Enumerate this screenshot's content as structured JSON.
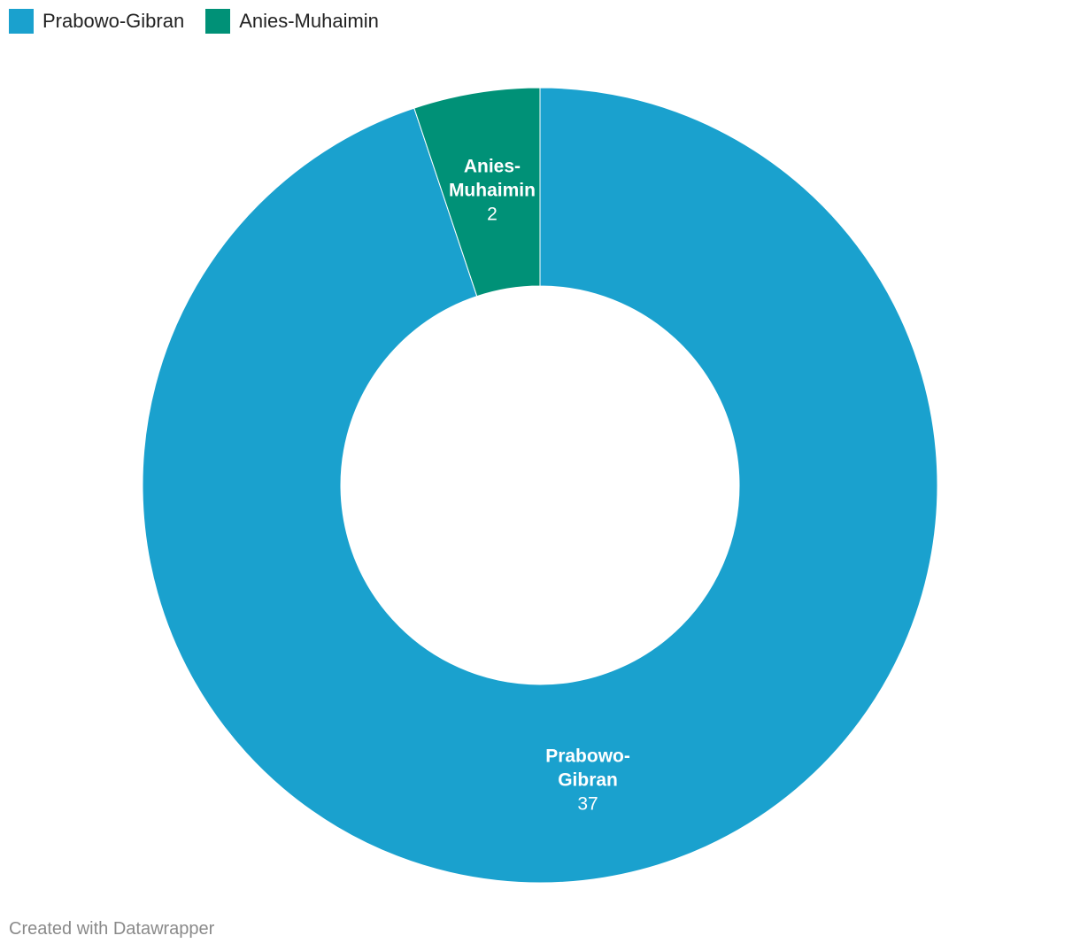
{
  "chart_data": {
    "type": "donut",
    "categories": [
      "Prabowo-Gibran",
      "Anies-Muhaimin"
    ],
    "values": [
      37,
      2
    ],
    "colors": [
      "#1aa1ce",
      "#009177"
    ],
    "legend": "top-left",
    "credit": "Created with Datawrapper"
  }
}
